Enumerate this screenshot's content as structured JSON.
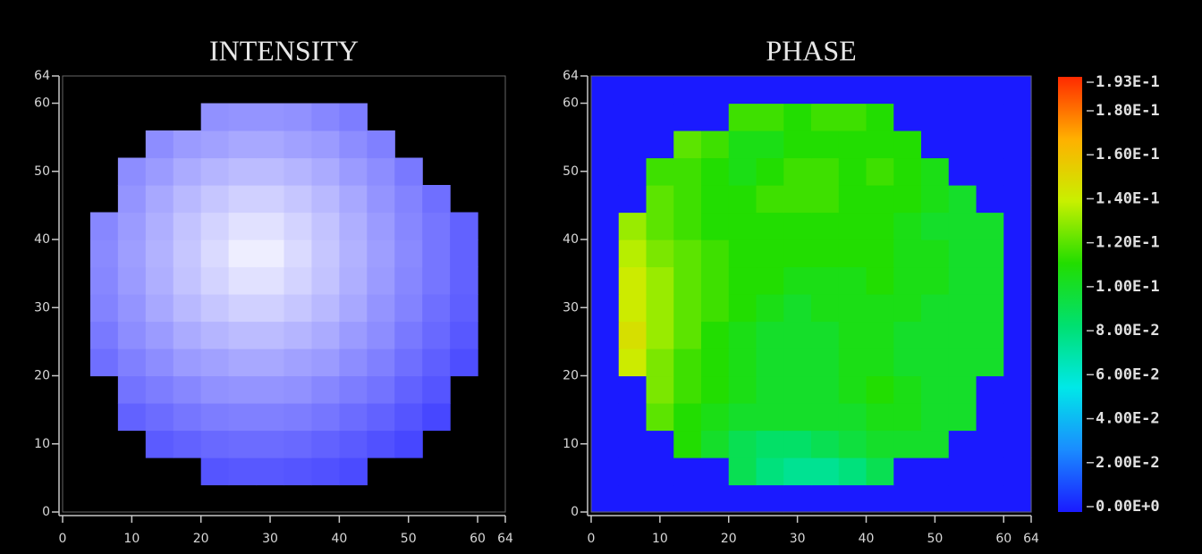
{
  "chart_data": [
    {
      "type": "heatmap",
      "title": "INTENSITY",
      "xlim": [
        0,
        64
      ],
      "ylim": [
        0,
        64
      ],
      "xticks": [
        0,
        10,
        20,
        30,
        40,
        50,
        60,
        64
      ],
      "yticks": [
        0,
        10,
        20,
        30,
        40,
        50,
        60,
        64
      ],
      "clim": [
        40,
        100
      ],
      "colormap": [
        "#3030ff",
        "#f8f8ff"
      ],
      "values": [
        [
          null,
          null,
          null,
          null,
          null,
          null,
          null,
          null,
          null,
          null,
          null,
          null,
          null,
          null,
          null,
          null
        ],
        [
          null,
          null,
          null,
          null,
          null,
          51,
          52,
          52,
          51,
          50,
          48,
          null,
          null,
          null,
          null,
          null
        ],
        [
          null,
          null,
          null,
          53,
          55,
          57,
          58,
          58,
          57,
          55,
          53,
          50,
          47,
          null,
          null,
          null
        ],
        [
          null,
          null,
          55,
          58,
          61,
          63,
          64,
          64,
          63,
          61,
          58,
          55,
          51,
          47,
          null,
          null
        ],
        [
          null,
          null,
          60,
          63,
          66,
          69,
          70,
          70,
          69,
          66,
          63,
          60,
          55,
          51,
          null,
          null
        ],
        [
          null,
          59,
          64,
          68,
          72,
          74,
          76,
          76,
          74,
          72,
          68,
          64,
          59,
          54,
          49,
          null
        ],
        [
          null,
          62,
          68,
          72,
          77,
          80,
          82,
          82,
          80,
          77,
          72,
          68,
          62,
          57,
          52,
          null
        ],
        [
          null,
          65,
          70,
          76,
          81,
          85,
          88,
          88,
          85,
          81,
          76,
          70,
          65,
          59,
          54,
          null
        ],
        [
          null,
          66,
          72,
          78,
          84,
          89,
          93,
          93,
          89,
          84,
          78,
          72,
          66,
          61,
          55,
          null
        ],
        [
          null,
          67,
          73,
          79,
          85,
          91,
          97,
          97,
          91,
          85,
          79,
          73,
          67,
          61,
          55,
          null
        ],
        [
          null,
          66,
          72,
          78,
          84,
          89,
          93,
          93,
          89,
          84,
          78,
          72,
          66,
          61,
          55,
          null
        ],
        [
          null,
          null,
          70,
          76,
          81,
          85,
          88,
          88,
          85,
          81,
          76,
          70,
          65,
          59,
          null,
          null
        ],
        [
          null,
          null,
          68,
          72,
          77,
          80,
          82,
          82,
          80,
          77,
          72,
          68,
          62,
          null,
          null,
          null
        ],
        [
          null,
          null,
          null,
          68,
          72,
          74,
          76,
          76,
          74,
          72,
          68,
          64,
          null,
          null,
          null,
          null
        ],
        [
          null,
          null,
          null,
          null,
          null,
          69,
          70,
          70,
          69,
          66,
          63,
          null,
          null,
          null,
          null,
          null
        ],
        [
          null,
          null,
          null,
          null,
          null,
          null,
          null,
          null,
          null,
          null,
          null,
          null,
          null,
          null,
          null,
          null
        ]
      ]
    },
    {
      "type": "heatmap",
      "title": "PHASE",
      "xlim": [
        0,
        64
      ],
      "ylim": [
        0,
        64
      ],
      "xticks": [
        0,
        10,
        20,
        30,
        40,
        50,
        60,
        64
      ],
      "yticks": [
        0,
        10,
        20,
        30,
        40,
        50,
        60,
        64
      ],
      "clim": [
        0,
        0.193
      ],
      "colormap": [
        "#1a1aff",
        "#1a8cff",
        "#00e8e8",
        "#00e070",
        "#22dd00",
        "#c8f000",
        "#ffb000",
        "#ff2a00"
      ],
      "cticks": [
        {
          "value": 0.193,
          "label": "1.93E-1"
        },
        {
          "value": 0.18,
          "label": "1.80E-1"
        },
        {
          "value": 0.16,
          "label": "1.60E-1"
        },
        {
          "value": 0.14,
          "label": "1.40E-1"
        },
        {
          "value": 0.12,
          "label": "1.20E-1"
        },
        {
          "value": 0.1,
          "label": "1.00E-1"
        },
        {
          "value": 0.08,
          "label": "8.00E-2"
        },
        {
          "value": 0.06,
          "label": "6.00E-2"
        },
        {
          "value": 0.04,
          "label": "4.00E-2"
        },
        {
          "value": 0.02,
          "label": "2.00E-2"
        },
        {
          "value": 0,
          "label": "0.00E+0"
        }
      ],
      "values": [
        [
          0,
          0,
          0,
          0,
          0,
          0,
          0,
          0,
          0,
          0,
          0,
          0,
          0,
          0,
          0,
          0
        ],
        [
          0,
          0,
          0,
          0,
          0,
          0.09,
          0.08,
          0.075,
          0.075,
          0.08,
          0.09,
          0,
          0,
          0,
          0,
          0
        ],
        [
          0,
          0,
          0,
          0.11,
          0.1,
          0.09,
          0.085,
          0.085,
          0.09,
          0.095,
          0.1,
          0.1,
          0.1,
          0,
          0,
          0
        ],
        [
          0,
          0,
          0.12,
          0.11,
          0.105,
          0.1,
          0.1,
          0.1,
          0.1,
          0.1,
          0.105,
          0.105,
          0.1,
          0.1,
          0,
          0
        ],
        [
          0,
          0,
          0.125,
          0.115,
          0.11,
          0.105,
          0.1,
          0.1,
          0.1,
          0.105,
          0.11,
          0.105,
          0.1,
          0.1,
          0,
          0
        ],
        [
          0,
          0.14,
          0.125,
          0.115,
          0.11,
          0.105,
          0.1,
          0.1,
          0.1,
          0.105,
          0.105,
          0.1,
          0.1,
          0.1,
          0.1,
          0
        ],
        [
          0,
          0.145,
          0.13,
          0.12,
          0.11,
          0.105,
          0.1,
          0.1,
          0.1,
          0.105,
          0.105,
          0.1,
          0.1,
          0.1,
          0.1,
          0
        ],
        [
          0,
          0.14,
          0.13,
          0.12,
          0.115,
          0.11,
          0.105,
          0.1,
          0.105,
          0.105,
          0.105,
          0.105,
          0.1,
          0.1,
          0.1,
          0
        ],
        [
          0,
          0.14,
          0.13,
          0.12,
          0.115,
          0.11,
          0.11,
          0.105,
          0.105,
          0.105,
          0.11,
          0.105,
          0.105,
          0.1,
          0.1,
          0
        ],
        [
          0,
          0.135,
          0.125,
          0.12,
          0.115,
          0.11,
          0.11,
          0.11,
          0.11,
          0.11,
          0.11,
          0.105,
          0.105,
          0.1,
          0.1,
          0
        ],
        [
          0,
          0.13,
          0.12,
          0.115,
          0.11,
          0.11,
          0.11,
          0.11,
          0.11,
          0.11,
          0.11,
          0.105,
          0.1,
          0.1,
          0.1,
          0
        ],
        [
          0,
          0,
          0.12,
          0.115,
          0.11,
          0.11,
          0.115,
          0.115,
          0.115,
          0.11,
          0.11,
          0.11,
          0.105,
          0.1,
          0,
          0
        ],
        [
          0,
          0,
          0.115,
          0.115,
          0.11,
          0.105,
          0.11,
          0.115,
          0.115,
          0.11,
          0.115,
          0.11,
          0.105,
          0,
          0,
          0
        ],
        [
          0,
          0,
          0,
          0.12,
          0.115,
          0.105,
          0.105,
          0.11,
          0.11,
          0.11,
          0.11,
          0.11,
          0,
          0,
          0,
          0
        ],
        [
          0,
          0,
          0,
          0,
          0,
          0.115,
          0.115,
          0.11,
          0.115,
          0.115,
          0.11,
          0,
          0,
          0,
          0,
          0
        ],
        [
          0,
          0,
          0,
          0,
          0,
          0,
          0,
          0,
          0,
          0,
          0,
          0,
          0,
          0,
          0,
          0
        ]
      ]
    }
  ]
}
